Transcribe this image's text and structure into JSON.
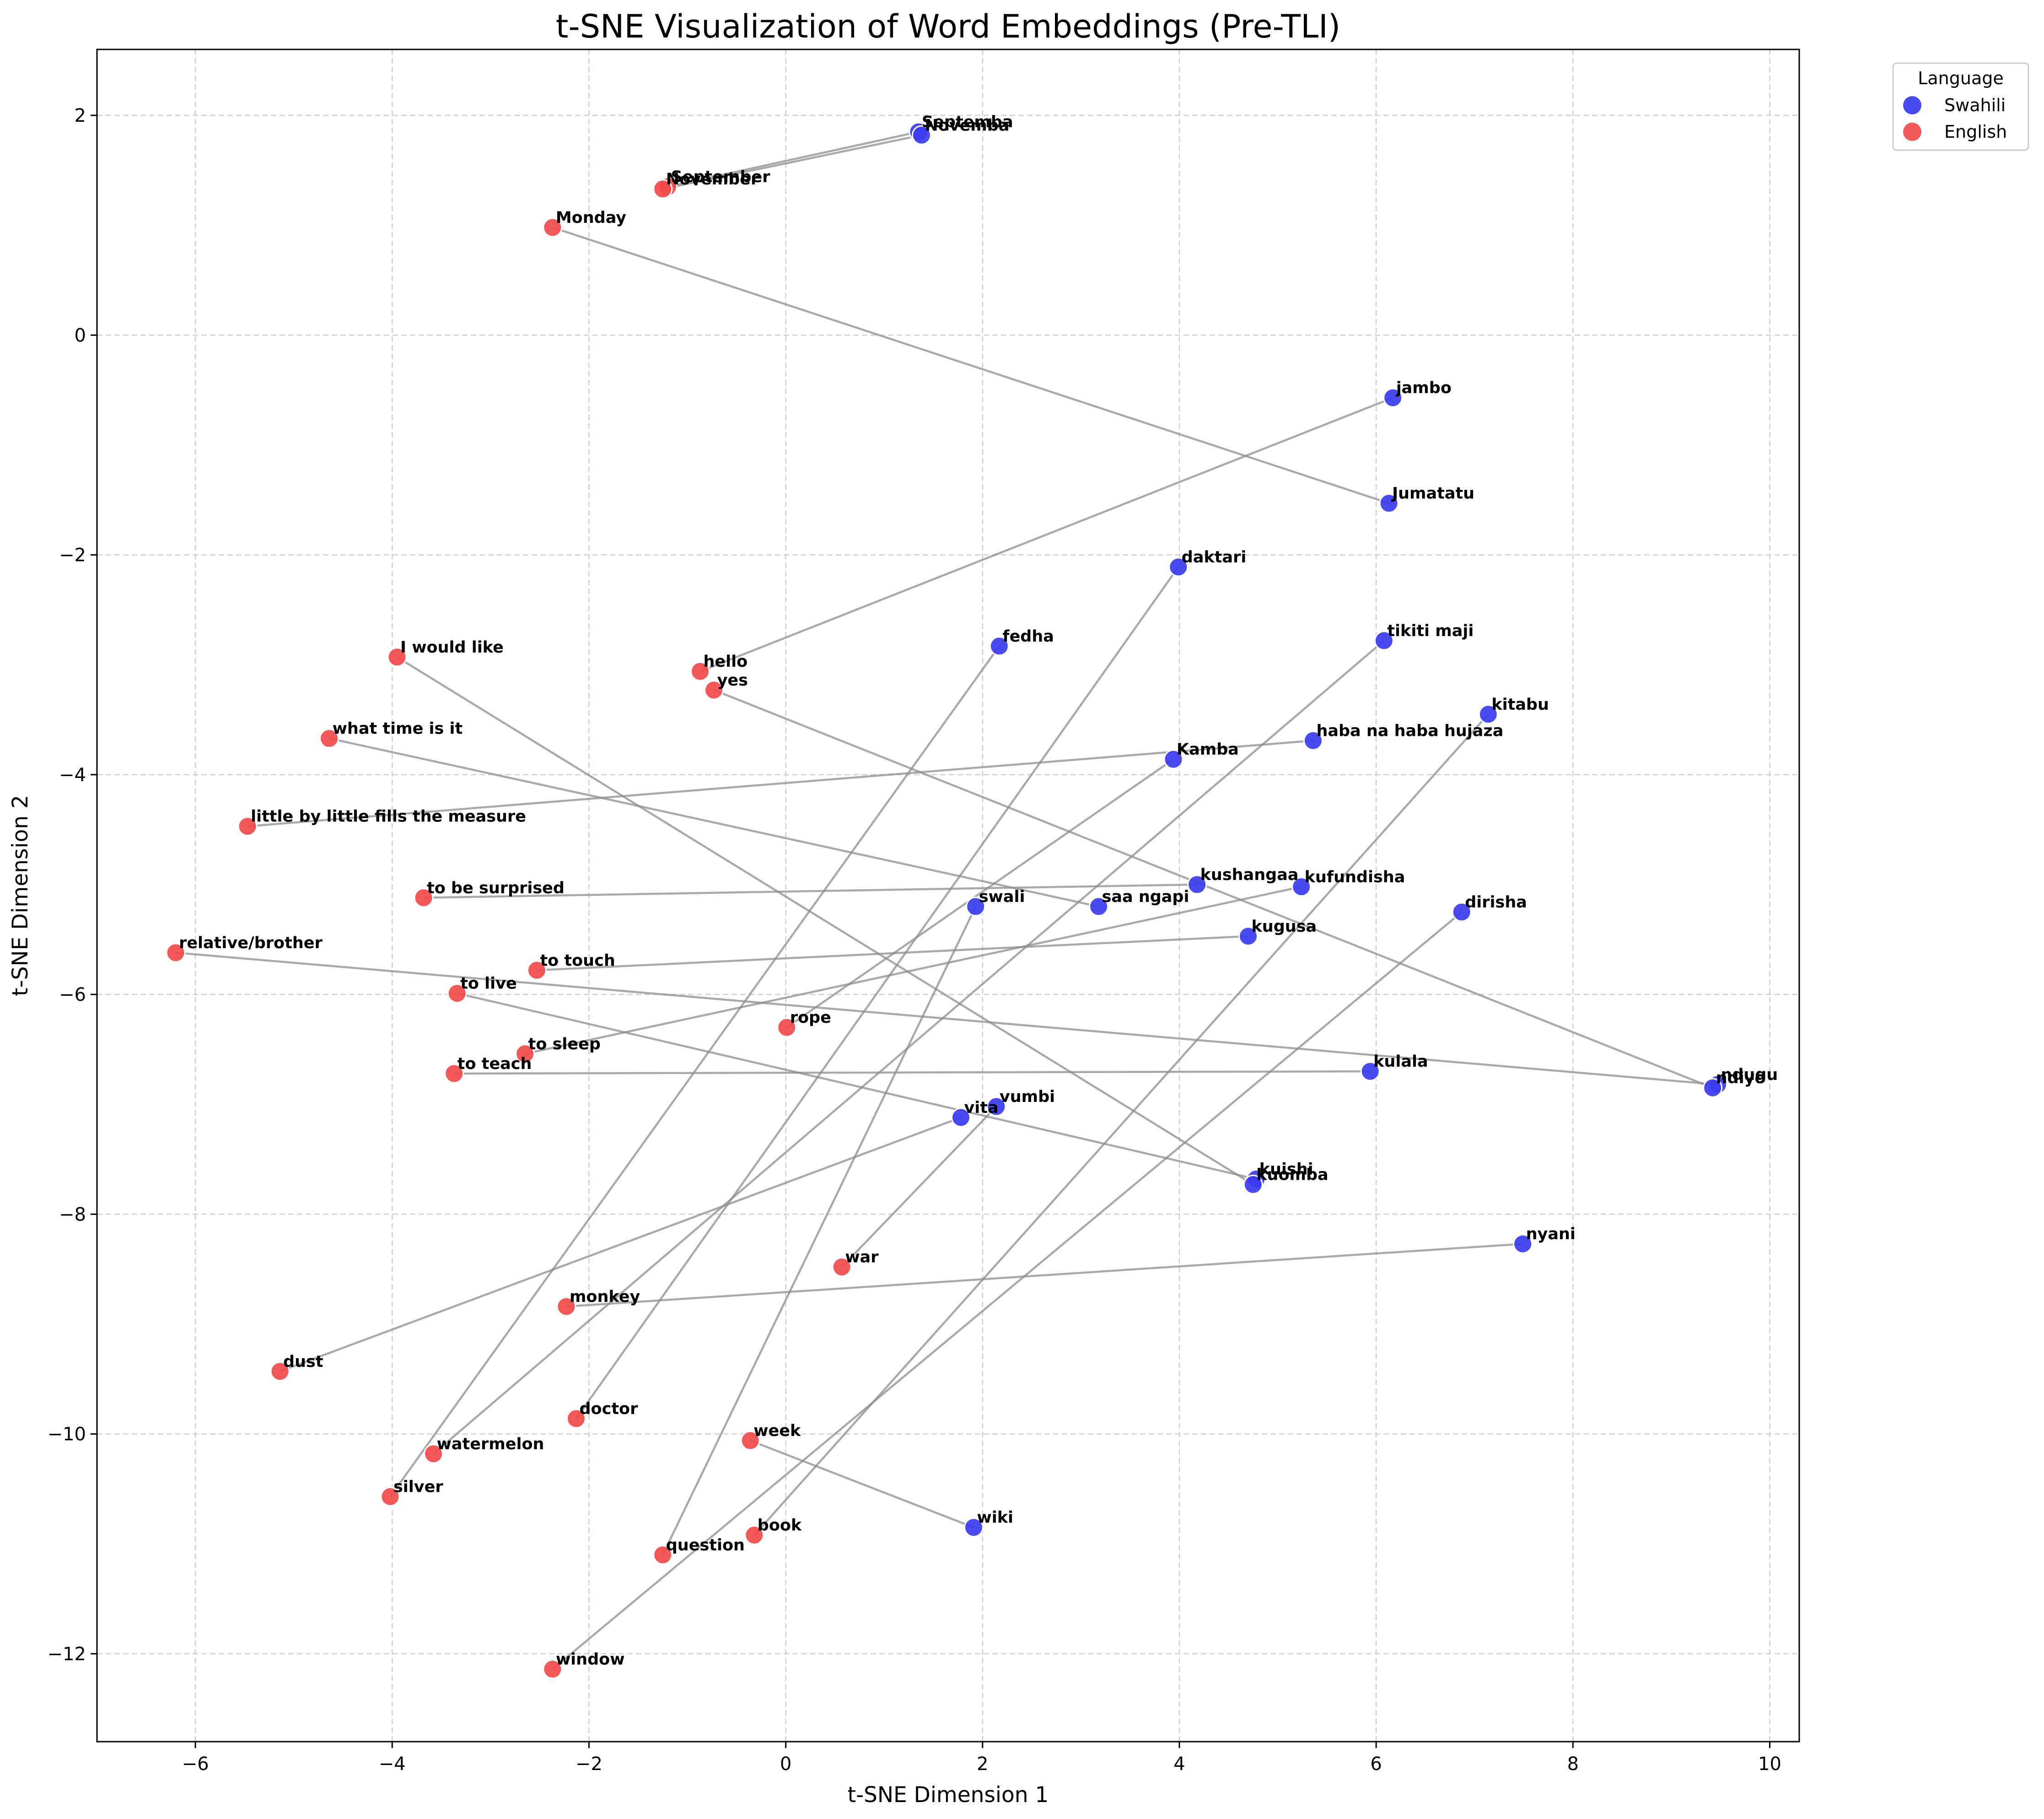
{
  "chart_data": {
    "type": "scatter",
    "title": "t-SNE Visualization of Word Embeddings (Pre-TLI)",
    "xlabel": "t-SNE Dimension 1",
    "ylabel": "t-SNE Dimension 2",
    "xlim": [
      -7.0,
      10.3
    ],
    "ylim": [
      -12.8,
      2.6
    ],
    "xticks": [
      -6,
      -4,
      -2,
      0,
      2,
      4,
      6,
      8,
      10
    ],
    "yticks": [
      2,
      0,
      -2,
      -4,
      -6,
      -8,
      -10,
      -12
    ],
    "grid": true,
    "legend": {
      "title": "Language",
      "placement": "outside-top-right",
      "entries": [
        {
          "label": "Swahili",
          "color": "#3b3bf0"
        },
        {
          "label": "English",
          "color": "#f24a4a"
        }
      ]
    },
    "colors": {
      "swahili": "#3b3bf0",
      "english": "#f24a4a",
      "link": "#8c8c8c"
    },
    "pairs": [
      {
        "en": {
          "label": "September",
          "x": -1.2,
          "y": 1.35
        },
        "sw": {
          "label": "Septemba",
          "x": 1.35,
          "y": 1.85
        }
      },
      {
        "en": {
          "label": "November",
          "x": -1.25,
          "y": 1.33
        },
        "sw": {
          "label": "Novemba",
          "x": 1.38,
          "y": 1.82
        }
      },
      {
        "en": {
          "label": "Monday",
          "x": -2.37,
          "y": 0.98
        },
        "sw": {
          "label": "Jumatatu",
          "x": 6.13,
          "y": -1.53
        }
      },
      {
        "en": {
          "label": "hello",
          "x": -0.87,
          "y": -3.06
        },
        "sw": {
          "label": "jambo",
          "x": 6.17,
          "y": -0.57
        }
      },
      {
        "en": {
          "label": "doctor",
          "x": -2.13,
          "y": -9.86
        },
        "sw": {
          "label": "daktari",
          "x": 3.99,
          "y": -2.11
        }
      },
      {
        "en": {
          "label": "silver",
          "x": -4.02,
          "y": -10.57
        },
        "sw": {
          "label": "fedha",
          "x": 2.17,
          "y": -2.83
        }
      },
      {
        "en": {
          "label": "watermelon",
          "x": -3.58,
          "y": -10.18
        },
        "sw": {
          "label": "tikiti maji",
          "x": 6.08,
          "y": -2.78
        }
      },
      {
        "en": {
          "label": "book",
          "x": -0.32,
          "y": -10.92
        },
        "sw": {
          "label": "kitabu",
          "x": 7.14,
          "y": -3.45
        }
      },
      {
        "en": {
          "label": "little by little fills the measure",
          "x": -5.47,
          "y": -4.47
        },
        "sw": {
          "label": "haba na haba hujaza",
          "x": 5.36,
          "y": -3.69
        }
      },
      {
        "en": {
          "label": "rope",
          "x": 0.01,
          "y": -6.3
        },
        "sw": {
          "label": "Kamba",
          "x": 3.94,
          "y": -3.86
        }
      },
      {
        "en": {
          "label": "to be surprised",
          "x": -3.68,
          "y": -5.12
        },
        "sw": {
          "label": "kushangaa",
          "x": 4.18,
          "y": -5.0
        }
      },
      {
        "en": {
          "label": "to sleep",
          "x": -2.65,
          "y": -6.54
        },
        "sw": {
          "label": "kufundisha",
          "x": 5.24,
          "y": -5.02
        }
      },
      {
        "en": {
          "label": "what time is it",
          "x": -4.64,
          "y": -3.67
        },
        "sw": {
          "label": "saa ngapi",
          "x": 3.18,
          "y": -5.2
        }
      },
      {
        "en": {
          "label": "question",
          "x": -1.25,
          "y": -11.1
        },
        "sw": {
          "label": "swali",
          "x": 1.93,
          "y": -5.2
        }
      },
      {
        "en": {
          "label": "window",
          "x": -2.37,
          "y": -12.14
        },
        "sw": {
          "label": "dirisha",
          "x": 6.87,
          "y": -5.25
        }
      },
      {
        "en": {
          "label": "to touch",
          "x": -2.53,
          "y": -5.78
        },
        "sw": {
          "label": "kugusa",
          "x": 4.7,
          "y": -5.47
        }
      },
      {
        "en": {
          "label": "relative/brother",
          "x": -6.2,
          "y": -5.62
        },
        "sw": {
          "label": "ndugu",
          "x": 9.47,
          "y": -6.82
        }
      },
      {
        "en": {
          "label": "yes",
          "x": -0.73,
          "y": -3.23
        },
        "sw": {
          "label": "ndiyo",
          "x": 9.42,
          "y": -6.85
        }
      },
      {
        "en": {
          "label": "to teach",
          "x": -3.37,
          "y": -6.72
        },
        "sw": {
          "label": "kulala",
          "x": 5.94,
          "y": -6.7
        }
      },
      {
        "en": {
          "label": "war",
          "x": 0.57,
          "y": -8.48
        },
        "sw": {
          "label": "vumbi",
          "x": 2.14,
          "y": -7.02
        }
      },
      {
        "en": {
          "label": "dust",
          "x": -5.14,
          "y": -9.43
        },
        "sw": {
          "label": "vita",
          "x": 1.78,
          "y": -7.12
        }
      },
      {
        "en": {
          "label": "to live",
          "x": -3.34,
          "y": -5.99
        },
        "sw": {
          "label": "kuishi",
          "x": 4.78,
          "y": -7.68
        }
      },
      {
        "en": {
          "label": "I would like",
          "x": -3.95,
          "y": -2.93
        },
        "sw": {
          "label": "kuomba",
          "x": 4.75,
          "y": -7.73
        }
      },
      {
        "en": {
          "label": "monkey",
          "x": -2.23,
          "y": -8.84
        },
        "sw": {
          "label": "nyani",
          "x": 7.49,
          "y": -8.27
        }
      },
      {
        "en": {
          "label": "week",
          "x": -0.36,
          "y": -10.06
        },
        "sw": {
          "label": "wiki",
          "x": 1.91,
          "y": -10.85
        }
      }
    ]
  }
}
